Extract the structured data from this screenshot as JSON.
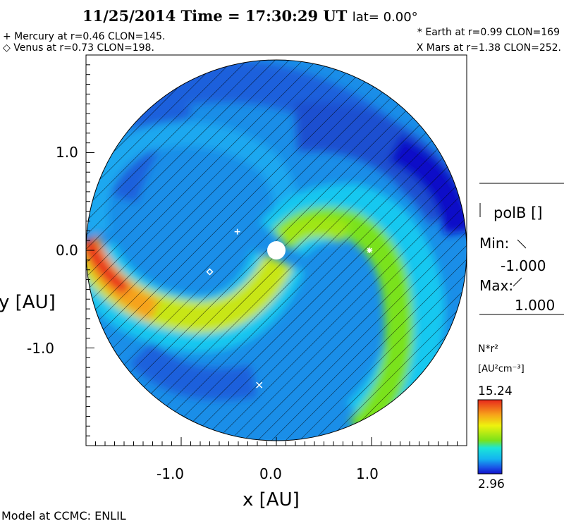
{
  "chart_data": {
    "type": "heatmap",
    "title": "11/25/2014 Time = 17:30:29 UT",
    "lat_label": "lat= 0.00°",
    "xlabel": "x [AU]",
    "ylabel": "y [AU]",
    "xlim": [
      -2,
      2
    ],
    "ylim": [
      -2,
      2
    ],
    "xticks": [
      "-1.0",
      "0.0",
      "1.0"
    ],
    "yticks": [
      "1.0",
      "0.0",
      "-1.0"
    ],
    "planets": [
      {
        "name": "Mercury",
        "label": "+ Mercury at r=0.46 CLON=145.",
        "symbol": "+",
        "x": -0.41,
        "y": 0.19
      },
      {
        "name": "Venus",
        "label": "◇ Venus at r=0.73 CLON=198.",
        "symbol": "diamond",
        "x": -0.7,
        "y": -0.22
      },
      {
        "name": "Earth",
        "label": "* Earth at  r=0.99 CLON=169",
        "symbol": "*",
        "x": 0.98,
        "y": 0.0
      },
      {
        "name": "Mars",
        "label": "X Mars at r=1.38 CLON=252.",
        "symbol": "x",
        "x": -0.18,
        "y": -1.38
      }
    ],
    "polarity": {
      "label": "polB []",
      "min_label": "Min:",
      "min": "-1.000",
      "max_label": "Max:",
      "max": "1.000"
    },
    "colorbar": {
      "quantity": "N*r²",
      "units": "[AU²cm⁻³]",
      "max": "15.24",
      "min": "2.96",
      "colors": [
        "#e8281c",
        "#f7a21a",
        "#eef20e",
        "#7ae21a",
        "#1ae6d8",
        "#14b4f0",
        "#1a50e6",
        "#1010c8"
      ]
    },
    "footer": "Model at CCMC: ENLIL"
  }
}
